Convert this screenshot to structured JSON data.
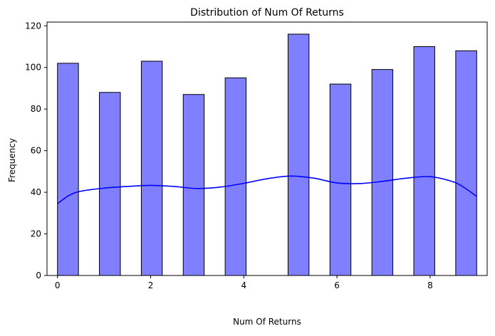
{
  "chart_data": {
    "type": "bar",
    "title": "Distribution of Num Of Returns",
    "xlabel": "Num Of Returns",
    "ylabel": "Frequency",
    "xlim": [
      -0.225,
      9.225
    ],
    "ylim": [
      0,
      121.8
    ],
    "x_ticks": [
      0,
      2,
      4,
      6,
      8
    ],
    "y_ticks": [
      0,
      20,
      40,
      60,
      80,
      100,
      120
    ],
    "bins": [
      {
        "x0": 0.0,
        "x1": 0.45,
        "value": 102
      },
      {
        "x0": 0.9,
        "x1": 1.35,
        "value": 88
      },
      {
        "x0": 1.8,
        "x1": 2.25,
        "value": 103
      },
      {
        "x0": 2.7,
        "x1": 3.15,
        "value": 87
      },
      {
        "x0": 3.6,
        "x1": 4.05,
        "value": 95
      },
      {
        "x0": 4.95,
        "x1": 5.4,
        "value": 116
      },
      {
        "x0": 5.85,
        "x1": 6.3,
        "value": 92
      },
      {
        "x0": 6.75,
        "x1": 7.2,
        "value": 99
      },
      {
        "x0": 7.65,
        "x1": 8.1,
        "value": 110
      },
      {
        "x0": 8.55,
        "x1": 9.0,
        "value": 108
      }
    ],
    "kde": {
      "name": "KDE",
      "x": [
        0,
        0.25,
        0.5,
        1,
        1.5,
        2,
        2.5,
        3,
        3.5,
        4,
        4.5,
        5,
        5.5,
        6,
        6.5,
        7,
        7.5,
        8,
        8.5,
        8.75,
        9
      ],
      "y": [
        34.5,
        38.5,
        40.5,
        42,
        42.8,
        43.3,
        42.8,
        41.8,
        42.5,
        44.3,
        46.5,
        47.8,
        46.8,
        44.5,
        44.2,
        45.3,
        46.8,
        47.5,
        45,
        42,
        38
      ]
    },
    "colors": {
      "bar_fill": "#8080ff",
      "bar_edge": "#000000",
      "kde_line": "#0000ff"
    },
    "grid": false
  }
}
